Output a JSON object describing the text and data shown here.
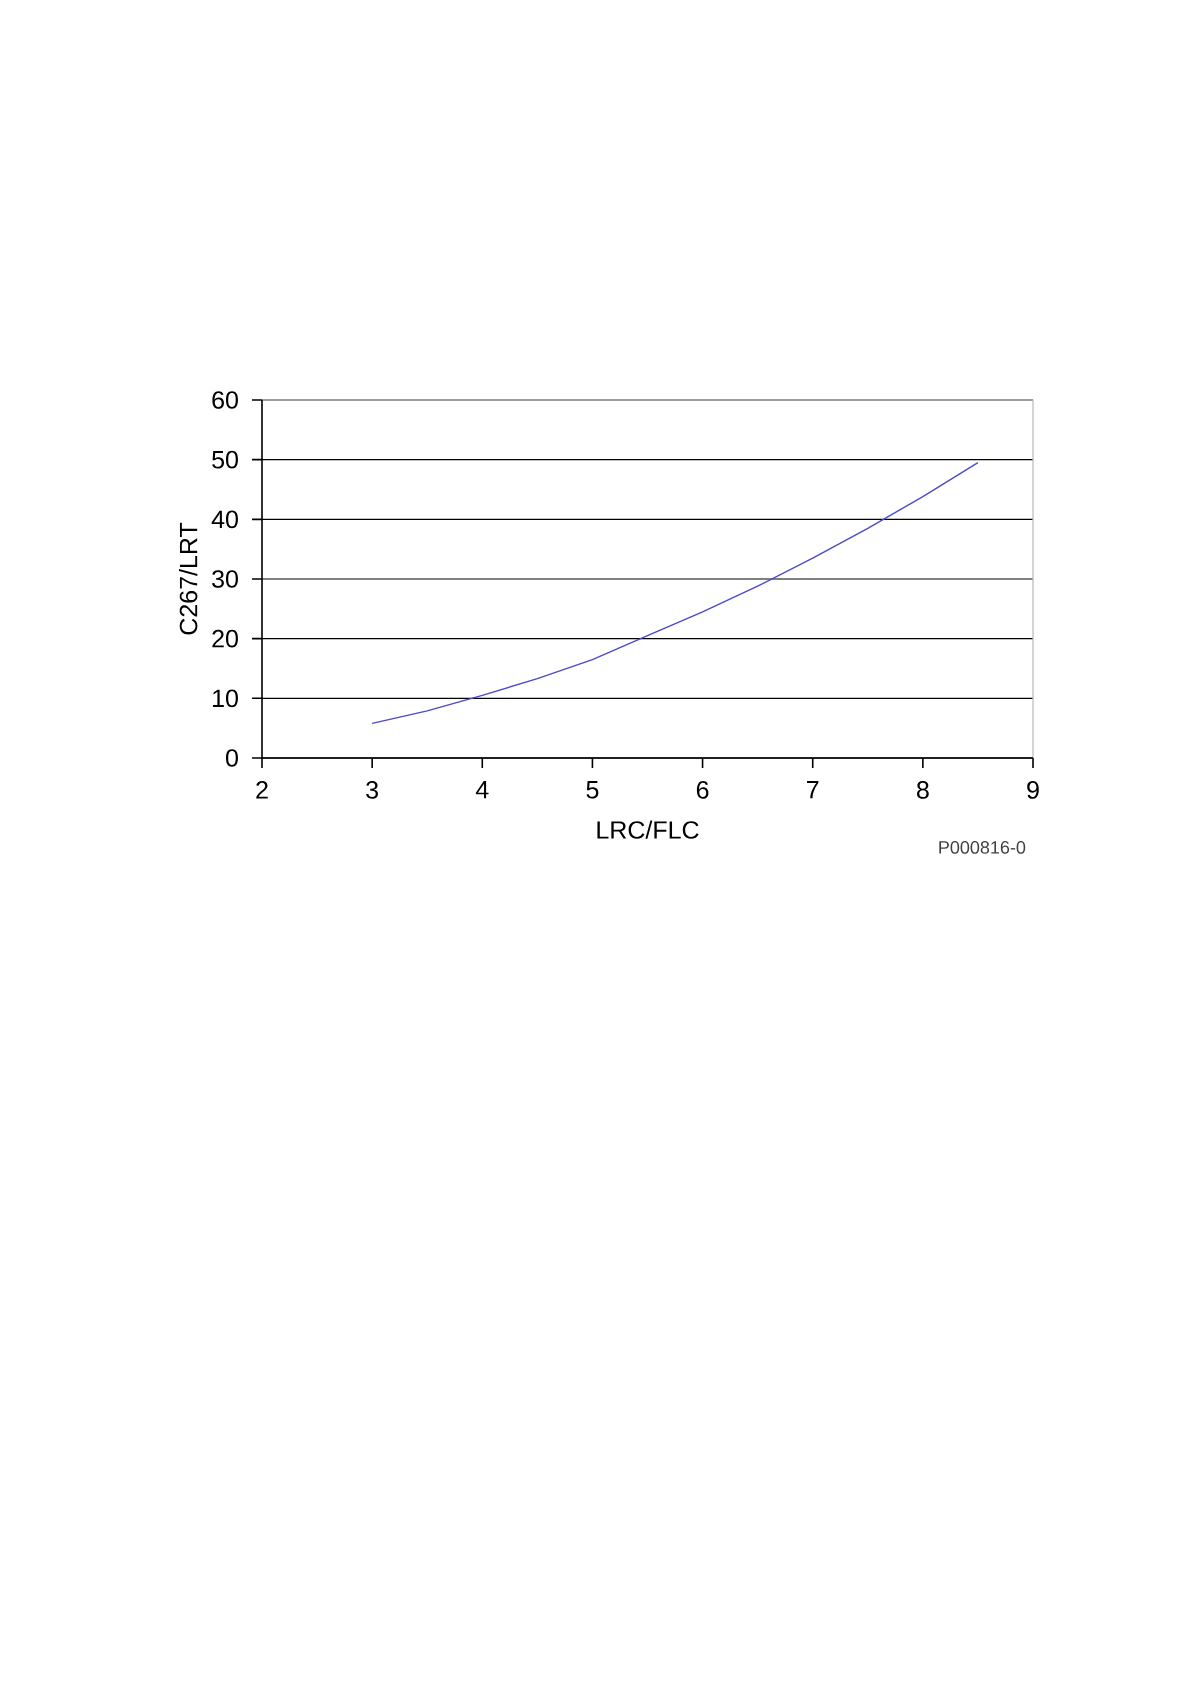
{
  "chart_data": {
    "type": "line",
    "xlabel": "LRC/FLC",
    "ylabel": "C267/LRT",
    "annotations": [
      "P000816-0"
    ],
    "x": [
      3,
      3.5,
      4,
      4.5,
      5,
      5.5,
      6,
      6.5,
      7,
      7.5,
      8,
      8.5
    ],
    "series": [
      {
        "color": "#4a4acc",
        "values": [
          5.8,
          7.9,
          10.5,
          13.3,
          16.5,
          20.5,
          24.5,
          28.8,
          33.5,
          38.5,
          43.8,
          49.5
        ]
      }
    ],
    "xlim": [
      2,
      9
    ],
    "xticks": [
      2,
      3,
      4,
      5,
      6,
      7,
      8,
      9
    ],
    "ylim": [
      0,
      60
    ],
    "yticks": [
      0,
      10,
      20,
      30,
      40,
      50,
      60
    ],
    "grid": "y",
    "marker": "none",
    "line_style": "solid"
  }
}
